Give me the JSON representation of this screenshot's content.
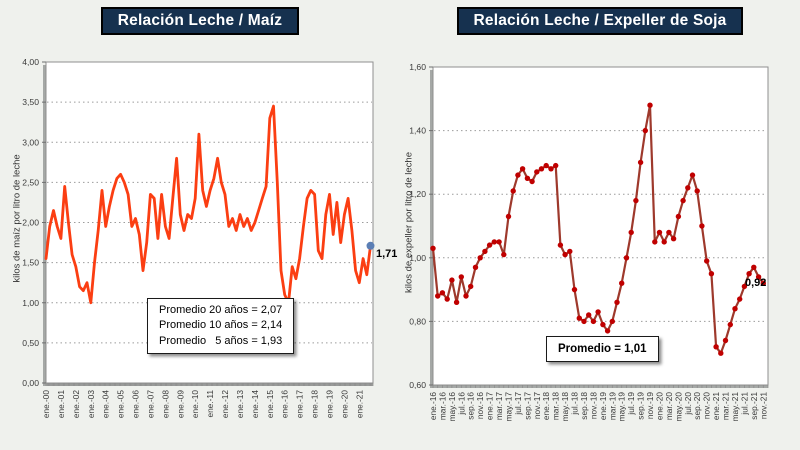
{
  "page": {
    "background": "#eff1ed"
  },
  "chart_data": [
    {
      "type": "line",
      "title": "Relación Leche / Maíz",
      "title_bg": "#16314f",
      "title_color": "#ffffff",
      "ylabel": "kilos de maíz por litro de leche",
      "ylim": [
        0,
        4
      ],
      "ytick_labels": [
        "0,00",
        "0,50",
        "1,00",
        "1,50",
        "2,00",
        "2,50",
        "3,00",
        "3,50",
        "4,00"
      ],
      "xtick_labels": [
        "ene.-00",
        "ene.-01",
        "ene.-02",
        "ene.-03",
        "ene.-04",
        "ene.-05",
        "ene.-06",
        "ene.-07",
        "ene.-08",
        "ene.-09",
        "ene.-10",
        "ene.-11",
        "ene.-12",
        "ene.-13",
        "ene.-14",
        "ene.-15",
        "ene.-16",
        "ene.-17",
        "ene.-18",
        "ene.-19",
        "ene.-20",
        "ene.-21"
      ],
      "x_start": "ene-00",
      "x_points_per_year": 4,
      "values": [
        1.55,
        1.95,
        2.15,
        1.95,
        1.8,
        2.45,
        2.0,
        1.6,
        1.45,
        1.2,
        1.15,
        1.25,
        1.0,
        1.5,
        1.9,
        2.4,
        1.95,
        2.2,
        2.4,
        2.55,
        2.6,
        2.5,
        2.35,
        1.95,
        2.05,
        1.85,
        1.4,
        1.75,
        2.35,
        2.3,
        1.8,
        2.35,
        1.95,
        1.8,
        2.3,
        2.8,
        2.1,
        1.9,
        2.1,
        2.05,
        2.3,
        3.1,
        2.4,
        2.2,
        2.4,
        2.55,
        2.8,
        2.5,
        2.35,
        1.95,
        2.05,
        1.9,
        2.1,
        1.95,
        2.05,
        1.9,
        2.0,
        2.15,
        2.3,
        2.45,
        3.3,
        3.45,
        2.5,
        1.4,
        1.1,
        1.0,
        1.45,
        1.3,
        1.55,
        1.95,
        2.3,
        2.4,
        2.35,
        1.65,
        1.55,
        2.1,
        2.35,
        1.85,
        2.25,
        1.75,
        2.1,
        2.3,
        1.9,
        1.4,
        1.25,
        1.55,
        1.35,
        1.71
      ],
      "line_color": "#fb3e12",
      "end_marker_color": "#5b7fb5",
      "last_value_label": "1,71",
      "annotation_lines": [
        "Promedio 20 años = 2,07",
        "Promedio 10 años = 2,14",
        "Promedio   5 años = 1,93"
      ],
      "grid": "dotted-horizontal",
      "legend": "none"
    },
    {
      "type": "line",
      "title": "Relación Leche / Expeller de Soja",
      "title_bg": "#16314f",
      "title_color": "#ffffff",
      "ylabel": "kilos de expeller por litro de leche",
      "ylim": [
        0.6,
        1.6
      ],
      "ytick_labels": [
        "0,60",
        "0,80",
        "1,00",
        "1,20",
        "1,40",
        "1,60"
      ],
      "xtick_labels": [
        "ene.-16",
        "mar.-16",
        "may.-16",
        "jul.-16",
        "sep.-16",
        "nov.-16",
        "ene.-17",
        "mar.-17",
        "may.-17",
        "jul.-17",
        "sep.-17",
        "nov.-17",
        "ene.-18",
        "mar.-18",
        "may.-18",
        "jul.-18",
        "sep.-18",
        "nov.-18",
        "ene.-19",
        "mar.-19",
        "may.-19",
        "jul.-19",
        "sep.-19",
        "nov.-19",
        "ene.-20",
        "mar.-20",
        "may.-20",
        "jul.-20",
        "sep.-20",
        "nov.-20",
        "ene.-21",
        "mar.-21",
        "may.-21",
        "jul.-21",
        "sep.-21",
        "nov.-21"
      ],
      "x_start": "ene-16",
      "x_points_per_year": 12,
      "values": [
        1.03,
        0.88,
        0.89,
        0.87,
        0.93,
        0.86,
        0.94,
        0.88,
        0.91,
        0.97,
        1.0,
        1.02,
        1.04,
        1.05,
        1.05,
        1.01,
        1.13,
        1.21,
        1.26,
        1.28,
        1.25,
        1.24,
        1.27,
        1.28,
        1.29,
        1.28,
        1.29,
        1.04,
        1.01,
        1.02,
        0.9,
        0.81,
        0.8,
        0.82,
        0.8,
        0.83,
        0.79,
        0.77,
        0.8,
        0.86,
        0.92,
        1.0,
        1.08,
        1.18,
        1.3,
        1.4,
        1.48,
        1.05,
        1.08,
        1.05,
        1.08,
        1.06,
        1.13,
        1.18,
        1.22,
        1.26,
        1.21,
        1.1,
        0.99,
        0.95,
        0.72,
        0.7,
        0.74,
        0.79,
        0.84,
        0.87,
        0.91,
        0.95,
        0.97,
        0.94,
        0.92
      ],
      "line_color": "#9e392c",
      "marker_color": "#c00000",
      "last_value_label": "0,92",
      "annotation": "Promedio = 1,01",
      "grid": "dotted-horizontal",
      "legend": "none"
    }
  ]
}
